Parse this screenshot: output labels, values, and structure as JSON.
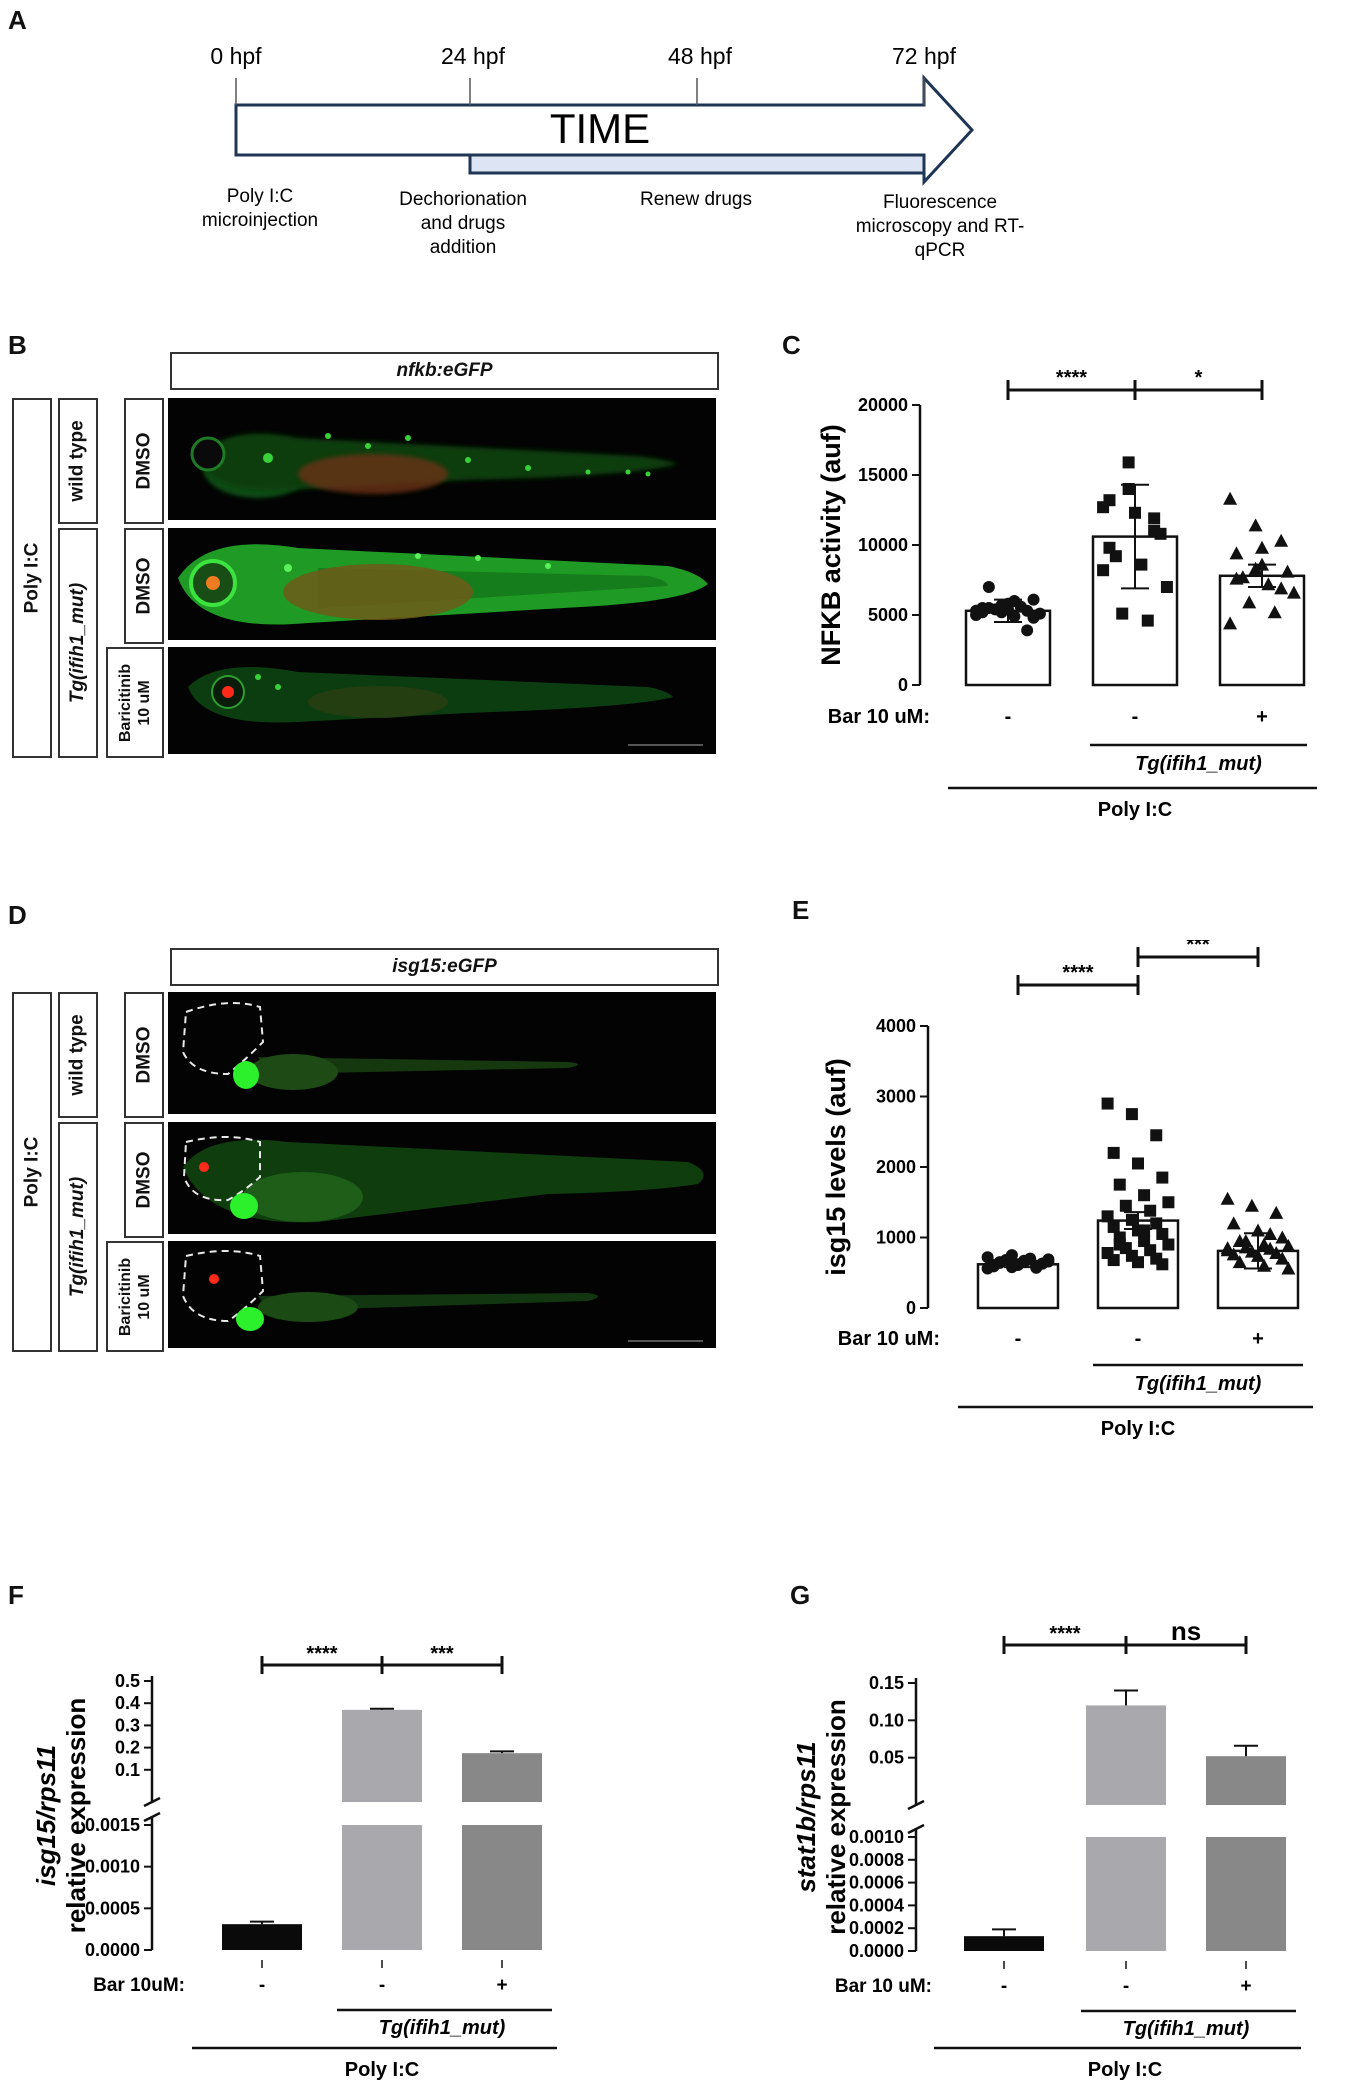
{
  "panel_letters": {
    "A": "A",
    "B": "B",
    "C": "C",
    "D": "D",
    "E": "E",
    "F": "F",
    "G": "G"
  },
  "timeline": {
    "ticks": [
      "0 hpf",
      "24 hpf",
      "48 hpf",
      "72 hpf"
    ],
    "arrow_label": "TIME",
    "events": [
      "Poly I:C\nmicroinjection",
      "Dechorionation\nand drugs\naddition",
      "Renew drugs",
      "Fluorescence\nmicroscopy and RT-\nqPCR"
    ]
  },
  "panel_b": {
    "title": "nfkb:eGFP",
    "group_label": "Poly I:C",
    "genotypes": [
      "wild type",
      "Tg(ifih1_mut)"
    ],
    "treatments": [
      "DMSO",
      "DMSO",
      "Baricitinib\n10 uM"
    ]
  },
  "panel_d": {
    "title": "isg15:eGFP",
    "group_label": "Poly I:C",
    "genotypes": [
      "wild type",
      "Tg(ifih1_mut)"
    ],
    "treatments": [
      "DMSO",
      "DMSO",
      "Baricitinib\n10 uM"
    ]
  },
  "colors": {
    "fluor_green": "#33d13a",
    "fluor_red": "#ff2a1a",
    "bar_light": "#a8a8ad",
    "bar_mid": "#888888",
    "bar_dark": "#0a0a0a"
  },
  "chart_data": [
    {
      "id": "C",
      "type": "bar",
      "ylabel": "NFKB activity (auf)",
      "ylim": [
        0,
        20000
      ],
      "yticks": [
        0,
        5000,
        10000,
        15000,
        20000
      ],
      "categories": [
        "-",
        "-",
        "+"
      ],
      "row_label": "Bar 10 uM:",
      "genotype_label": "Tg(ifih1_mut)",
      "group_label": "Poly I:C",
      "values": [
        5300,
        10600,
        7800
      ],
      "errors": [
        800,
        3700,
        800
      ],
      "markers": [
        "circle",
        "square",
        "triangle"
      ],
      "points": [
        [
          5000,
          5200,
          5300,
          5500,
          5800,
          6100,
          7000,
          4900,
          5100,
          5400,
          5600,
          5300,
          5700,
          3900,
          5200,
          5400,
          4800,
          5500,
          6000
        ],
        [
          8200,
          15900,
          11000,
          13200,
          12300,
          10800,
          9200,
          8600,
          7000,
          5100,
          4600,
          12700,
          14000,
          11900,
          9800
        ],
        [
          13300,
          11400,
          10300,
          9400,
          8600,
          8100,
          7700,
          7200,
          6600,
          5900,
          5200,
          4400,
          8300,
          6900,
          7600,
          9800
        ]
      ],
      "significance": [
        {
          "from": 0,
          "to": 1,
          "label": "****"
        },
        {
          "from": 1,
          "to": 2,
          "label": "*"
        }
      ]
    },
    {
      "id": "E",
      "type": "bar",
      "ylabel": "isg15 levels (auf)",
      "ylim": [
        0,
        4000
      ],
      "yticks": [
        0,
        1000,
        2000,
        3000,
        4000
      ],
      "categories": [
        "-",
        "-",
        "+"
      ],
      "row_label": "Bar 10 uM:",
      "genotype_label": "Tg(ifih1_mut)",
      "group_label": "Poly I:C",
      "values": [
        620,
        1240,
        810
      ],
      "errors": [
        40,
        120,
        250
      ],
      "markers": [
        "circle",
        "square",
        "triangle"
      ],
      "points": [
        [
          560,
          580,
          600,
          610,
          620,
          630,
          640,
          650,
          660,
          680,
          700,
          720,
          750,
          570,
          590,
          610,
          630,
          650,
          670,
          690
        ],
        [
          2900,
          2750,
          2450,
          2200,
          2050,
          1850,
          1750,
          1600,
          1500,
          1450,
          1380,
          1300,
          1250,
          1200,
          1150,
          1100,
          1050,
          1000,
          950,
          900,
          850,
          820,
          780,
          740,
          700,
          680,
          650,
          620,
          900,
          1100
        ],
        [
          1550,
          1450,
          1350,
          1200,
          1100,
          1000,
          950,
          900,
          880,
          860,
          840,
          820,
          800,
          780,
          760,
          740,
          700,
          650,
          600,
          560,
          950,
          1050,
          850
        ]
      ],
      "significance": [
        {
          "from": 0,
          "to": 1,
          "label": "****"
        },
        {
          "from": 1,
          "to": 2,
          "label": "***"
        }
      ]
    },
    {
      "id": "F",
      "type": "bar",
      "ylabel_italic": "isg15/rps11",
      "ylabel": "relative expression",
      "upper_yticks": [
        "0.1",
        "0.2",
        "0.3",
        "0.4",
        "0.5"
      ],
      "lower_yticks": [
        "0.0000",
        "0.0005",
        "0.0010",
        "0.0015"
      ],
      "categories": [
        "-",
        "-",
        "+"
      ],
      "row_label": "Bar 10uM:",
      "genotype_label": "Tg(ifih1_mut)",
      "group_label": "Poly I:C",
      "values": [
        0.00031,
        0.37,
        0.175
      ],
      "errors": [
        3e-05,
        0.005,
        0.008
      ],
      "significance": [
        {
          "from": 0,
          "to": 1,
          "label": "****"
        },
        {
          "from": 1,
          "to": 2,
          "label": "***"
        }
      ]
    },
    {
      "id": "G",
      "type": "bar",
      "ylabel_italic": "stat1b/rps11",
      "ylabel": "relative expression",
      "upper_yticks": [
        "0.05",
        "0.10",
        "0.15"
      ],
      "lower_yticks": [
        "0.0000",
        "0.0002",
        "0.0004",
        "0.0006",
        "0.0008",
        "0.0010"
      ],
      "categories": [
        "-",
        "-",
        "+"
      ],
      "row_label": "Bar 10 uM:",
      "genotype_label": "Tg(ifih1_mut)",
      "group_label": "Poly I:C",
      "values": [
        0.00013,
        0.12,
        0.052
      ],
      "errors": [
        6e-05,
        0.02,
        0.014
      ],
      "significance": [
        {
          "from": 0,
          "to": 1,
          "label": "****"
        },
        {
          "from": 1,
          "to": 2,
          "label": "ns"
        }
      ]
    }
  ]
}
